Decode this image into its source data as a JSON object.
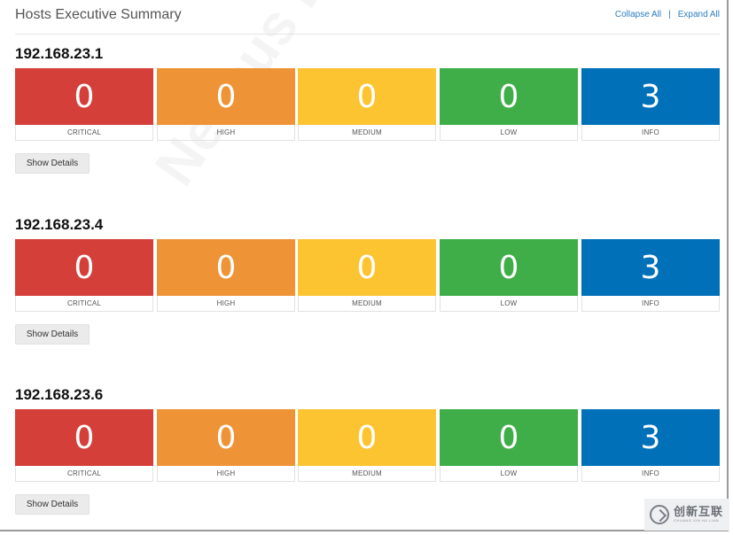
{
  "header": {
    "title": "Hosts Executive Summary",
    "collapse_label": "Collapse All",
    "separator": "|",
    "expand_label": "Expand All"
  },
  "severity_colors": {
    "critical": "#d43f3a",
    "high": "#ee9336",
    "medium": "#fdc431",
    "low": "#3fae49",
    "info": "#0071b9"
  },
  "hosts": [
    {
      "ip": "192.168.23.1",
      "counts": [
        "0",
        "0",
        "0",
        "0",
        "3"
      ],
      "labels": [
        "CRITICAL",
        "HIGH",
        "MEDIUM",
        "LOW",
        "INFO"
      ],
      "button": "Show Details"
    },
    {
      "ip": "192.168.23.4",
      "counts": [
        "0",
        "0",
        "0",
        "0",
        "3"
      ],
      "labels": [
        "CRITICAL",
        "HIGH",
        "MEDIUM",
        "LOW",
        "INFO"
      ],
      "button": "Show Details"
    },
    {
      "ip": "192.168.23.6",
      "counts": [
        "0",
        "0",
        "0",
        "0",
        "3"
      ],
      "labels": [
        "CRITICAL",
        "HIGH",
        "MEDIUM",
        "LOW",
        "INFO"
      ],
      "button": "Show Details"
    }
  ],
  "watermark": "Nessus Ess",
  "logo": {
    "icon": "brand-logo-icon",
    "name_cn": "创新互联",
    "name_en": "CHUANG XIN HU LIAN"
  }
}
